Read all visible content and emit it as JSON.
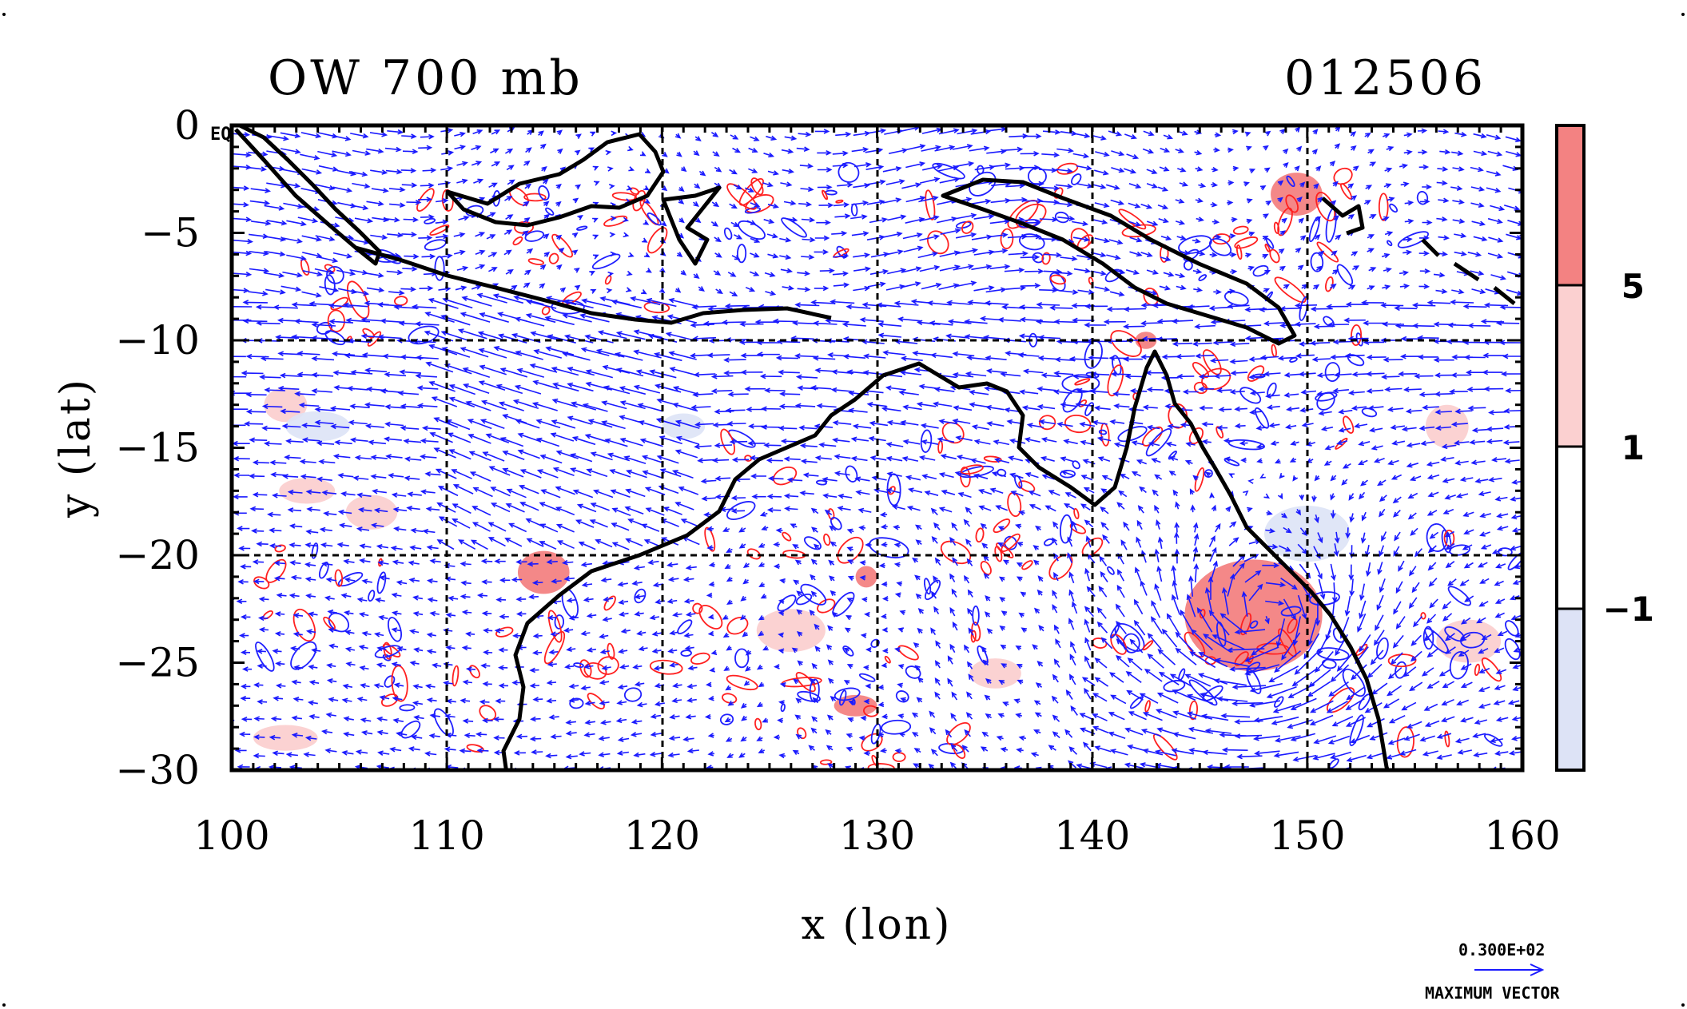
{
  "chart_data": {
    "type": "vector-contour-map",
    "title": "OW 700 mb",
    "timestamp": "012506",
    "xlabel": "x (lon)",
    "ylabel": "y (lat)",
    "xlim": [
      100,
      160
    ],
    "ylim": [
      -30,
      0
    ],
    "x_ticks": [
      "100",
      "110",
      "120",
      "130",
      "140",
      "150",
      "160"
    ],
    "y_ticks": [
      "0",
      "−5",
      "−10",
      "−15",
      "−20",
      "−25",
      "−30"
    ],
    "equator_label": "EQ",
    "grid": "dashed every 10 degrees",
    "colorbar": {
      "levels": [
        "5",
        "1",
        "−1"
      ],
      "colors": [
        "#f38282",
        "#fbd0d0",
        "#ffffff",
        "#dde3f6"
      ]
    },
    "vector_key": {
      "value": "0.300E+02",
      "label": "MAXIMUM VECTOR"
    },
    "colors": {
      "vectors": "#1a1aff",
      "positive_contour": "#ff2020",
      "negative_contour": "#2020ff",
      "coast": "#000000"
    }
  }
}
